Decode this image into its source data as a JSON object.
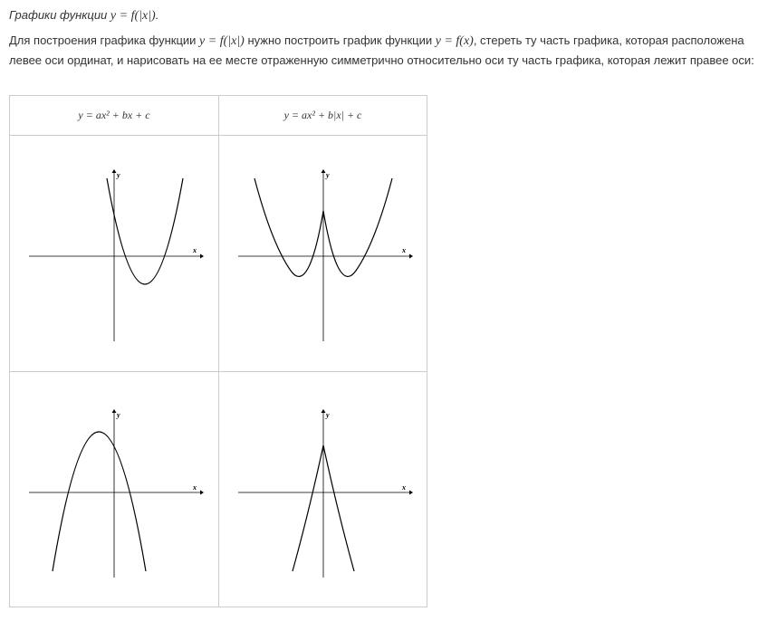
{
  "title": {
    "prefix": "Графики функции ",
    "formula": "y = f(|x|)",
    "suffix": "."
  },
  "paragraph": {
    "part1": "Для построения графика функции ",
    "formula1": "y = f(|x|)",
    "part2": " нужно построить график функции ",
    "formula2": "y = f(x)",
    "part3": ", стереть ту часть графика, которая расположена левее оси ординат, и нарисовать на ее месте отраженную симметрично относительно оси ту часть графика, которая лежит правее оси:"
  },
  "table": {
    "col1_header": "y = ax² + bx + c",
    "col2_header": "y = ax² + b|x| + c"
  },
  "plots": {
    "x_label": "x",
    "y_label": "y"
  }
}
